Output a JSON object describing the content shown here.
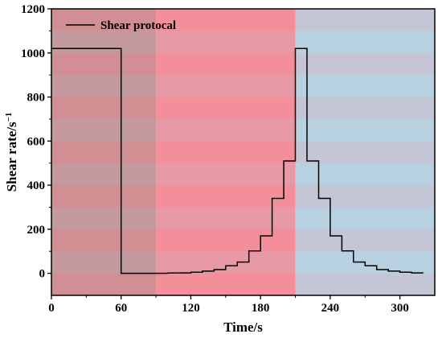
{
  "chart_data": {
    "type": "line",
    "xlabel": "Time/s",
    "ylabel": "Shear rate/s",
    "ylabel_superscript": "−1",
    "xlim": [
      0,
      330
    ],
    "ylim": [
      -100,
      1200
    ],
    "x_ticks": [
      "0",
      "60",
      "120",
      "180",
      "240",
      "300"
    ],
    "x_tick_values": [
      0,
      60,
      120,
      180,
      240,
      300
    ],
    "y_ticks": [
      "0",
      "200",
      "400",
      "600",
      "800",
      "1000",
      "1200"
    ],
    "y_tick_values": [
      0,
      200,
      400,
      600,
      800,
      1000,
      1200
    ],
    "legend_position": "top-left",
    "regions": [
      {
        "x_start": 0,
        "x_end": 90,
        "color": "#c98b8e"
      },
      {
        "x_start": 90,
        "x_end": 210,
        "color": "#f28b96"
      },
      {
        "x_start": 210,
        "x_end": 330,
        "color": "#b9cfe0"
      }
    ],
    "band_colors": {
      "pink": "#f7a3ad",
      "blue": "#b5dbe8"
    },
    "series": [
      {
        "name": "Shear protocal",
        "color": "#000000",
        "step_x": [
          0,
          60,
          60,
          100,
          110,
          120,
          130,
          140,
          150,
          160,
          170,
          180,
          190,
          200,
          210,
          220,
          230,
          240,
          250,
          260,
          270,
          280,
          290,
          300,
          310,
          320
        ],
        "step_y": [
          1020,
          1020,
          0,
          1,
          2,
          5,
          10,
          17,
          34,
          51,
          102,
          170,
          340,
          510,
          1020,
          510,
          340,
          170,
          102,
          51,
          34,
          17,
          10,
          5,
          2,
          1
        ]
      }
    ]
  }
}
